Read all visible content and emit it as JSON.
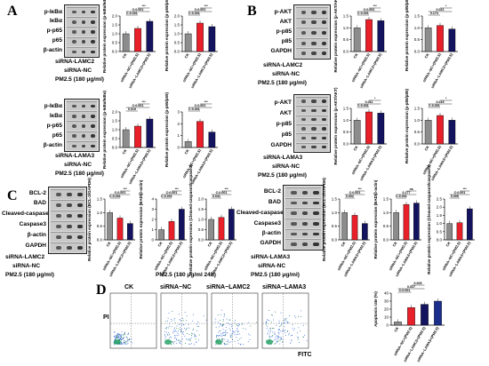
{
  "colors": {
    "ck": "#8c8c8c",
    "nc": "#e8202a",
    "kd": "#14135f"
  },
  "panels": {
    "A": {
      "letter": "A",
      "top": {
        "blot_labels": [
          "p-IκBα",
          "IκBα",
          "p-p65",
          "p65",
          "β-actin"
        ],
        "conditions": [
          "siRNA-LAMC2",
          "siRNA-NC",
          "PM2.5 (180 μg/ml)"
        ],
        "signs": [
          [
            "-",
            "-",
            "+"
          ],
          [
            "-",
            "+",
            "-"
          ],
          [
            "-",
            "+",
            "+"
          ]
        ],
        "charts": [
          {
            "ylabel": "Relative protein expression (p-IκBα/IκBα)",
            "values": [
              1.0,
              1.3,
              1.7
            ],
            "ylim": [
              0,
              2.0
            ],
            "ticks": [
              "0.0",
              "0.5",
              "1.0",
              "1.5",
              "2.0"
            ],
            "sig": [
              "C:0.001",
              "C:0.001",
              "***"
            ]
          },
          {
            "ylabel": "Relative protein expression (p-p65/p65)",
            "values": [
              1.0,
              1.6,
              1.4
            ],
            "ylim": [
              0,
              2.0
            ],
            "ticks": [
              "0.0",
              "0.5",
              "1.0",
              "1.5",
              "2.0"
            ],
            "sig": [
              "C:0.001",
              "C:0.001",
              "***"
            ]
          }
        ]
      },
      "bottom": {
        "blot_labels": [
          "p-IκBα",
          "IκBα",
          "p-p65",
          "p65",
          "β-actin"
        ],
        "conditions": [
          "siRNA-LAMA3",
          "siRNA-NC",
          "PM2.5 (180 μg/ml)"
        ],
        "signs": [
          [
            "-",
            "-",
            "+"
          ],
          [
            "-",
            "+",
            "-"
          ],
          [
            "-",
            "+",
            "+"
          ]
        ],
        "charts": [
          {
            "ylabel": "Relative protein expression (p-IκBα/IκBα)",
            "values": [
              1.0,
              1.2,
              1.6
            ],
            "ylim": [
              0,
              2.0
            ],
            "ticks": [
              "0.0",
              "0.5",
              "1.0",
              "1.5",
              "2.0"
            ],
            "sig": [
              "0.019",
              "C:0.001",
              "***"
            ]
          },
          {
            "ylabel": "Relative protein expression (p-p65/p65)",
            "values": [
              0.5,
              2.2,
              1.3
            ],
            "ylim": [
              0,
              3.0
            ],
            "ticks": [
              "0",
              "1",
              "2",
              "3"
            ],
            "sig": [
              "C:0.001",
              "C:0.001",
              "***"
            ]
          }
        ]
      }
    },
    "B": {
      "letter": "B",
      "top": {
        "blot_labels": [
          "p-AKT",
          "AKT",
          "p-p85",
          "p85",
          "GAPDH"
        ],
        "conditions": [
          "siRNA-LAMC2",
          "siRNA-NC",
          "PM2.5 (180 μg/ml)"
        ],
        "signs": [
          [
            "-",
            "-",
            "+"
          ],
          [
            "-",
            "+",
            "-"
          ],
          [
            "-",
            "+",
            "+"
          ]
        ],
        "charts": [
          {
            "ylabel": "Relative protein expression (p-AKT/AKT)",
            "values": [
              1.0,
              1.35,
              1.3
            ],
            "ylim": [
              0,
              1.5
            ],
            "ticks": [
              "0.0",
              "0.5",
              "1.0",
              "1.5"
            ],
            "sig": [
              "C:0.001",
              "C:0.001",
              "***"
            ]
          },
          {
            "ylabel": "Relative protein expression (p-p85/p85)",
            "values": [
              1.0,
              1.1,
              0.95
            ],
            "ylim": [
              0,
              1.5
            ],
            "ticks": [
              "0.0",
              "0.5",
              "1.0",
              "1.5"
            ],
            "sig": [
              "0.174",
              "0.021",
              "*"
            ]
          }
        ]
      },
      "bottom": {
        "blot_labels": [
          "p-AKT",
          "AKT",
          "p-p85",
          "p85",
          "GAPDH"
        ],
        "conditions": [
          "siRNA-LAMA3",
          "siRNA-NC",
          "PM2.5 (180 μg/ml)"
        ],
        "signs": [
          [
            "-",
            "-",
            "+"
          ],
          [
            "-",
            "+",
            "-"
          ],
          [
            "-",
            "+",
            "+"
          ]
        ],
        "charts": [
          {
            "ylabel": "Relative protein expression (p-AKT/AKT)",
            "values": [
              1.0,
              1.35,
              1.3
            ],
            "ylim": [
              0,
              1.5
            ],
            "ticks": [
              "0.0",
              "0.5",
              "1.0",
              "1.5"
            ],
            "sig": [
              "C:0.001",
              "0.011",
              "*"
            ]
          },
          {
            "ylabel": "Relative protein expression (p-p85/p85)",
            "values": [
              1.0,
              1.2,
              1.0
            ],
            "ylim": [
              0,
              1.5
            ],
            "ticks": [
              "0.0",
              "0.5",
              "1.0",
              "1.5"
            ],
            "sig": [
              "C:0.001",
              "0.019",
              "*"
            ]
          }
        ]
      }
    },
    "C": {
      "letter": "C",
      "left": {
        "blot_labels": [
          "BCL-2",
          "BAD",
          "Cleaved-caspase3",
          "Caspase3",
          "β-actin",
          "GAPDH"
        ],
        "conditions": [
          "siRNA-LAMC2",
          "siRNA-NC",
          "PM2.5 (180 μg/ml)"
        ],
        "signs": [
          [
            "-",
            "-",
            "+"
          ],
          [
            "-",
            "+",
            "-"
          ],
          [
            "-",
            "+",
            "+"
          ]
        ],
        "charts": [
          {
            "ylabel": "Relative protein expression (BCL-2/GAPDH)",
            "values": [
              1.0,
              0.8,
              0.6
            ],
            "ylim": [
              0,
              1.5
            ],
            "ticks": [
              "0.0",
              "0.5",
              "1.0",
              "1.5"
            ],
            "sig": [
              "C:0.001",
              "C:0.001",
              "***"
            ]
          },
          {
            "ylabel": "Relative protein expression (BAD/β-actin)",
            "values": [
              1.0,
              1.8,
              3.0
            ],
            "ylim": [
              0,
              4
            ],
            "ticks": [
              "0",
              "1",
              "2",
              "3",
              "4"
            ],
            "sig": [
              "C:0.001",
              "C:0.001",
              "***"
            ]
          },
          {
            "ylabel": "Relative protein expression (Cleaved-caspase3/caspase3)",
            "values": [
              1.0,
              1.1,
              1.5
            ],
            "ylim": [
              0,
              2.0
            ],
            "ticks": [
              "0.0",
              "0.5",
              "1.0",
              "1.5",
              "2.0"
            ],
            "sig": [
              "0.041",
              "C:0.001",
              "***"
            ]
          }
        ]
      },
      "right": {
        "blot_labels": [
          "BCL-2",
          "BAD",
          "Cleaved-caspase3",
          "Caspase3",
          "β-actin",
          "GAPDH"
        ],
        "conditions": [
          "siRNA-LAMA3",
          "siRNA-NC",
          "PM2.5 (180 μg/ml)"
        ],
        "signs": [
          [
            "-",
            "-",
            "+"
          ],
          [
            "-",
            "+",
            "-"
          ],
          [
            "-",
            "+",
            "+"
          ]
        ],
        "charts": [
          {
            "ylabel": "Relative protein expression (BCL-2/GAPDH)",
            "values": [
              1.0,
              0.9,
              0.6
            ],
            "ylim": [
              0,
              1.5
            ],
            "ticks": [
              "0.0",
              "0.5",
              "1.0",
              "1.5"
            ],
            "sig": [
              "0.002",
              "C:0.001",
              "***"
            ]
          },
          {
            "ylabel": "Relative protein expression (BAD/β-actin)",
            "values": [
              1.0,
              1.3,
              1.35
            ],
            "ylim": [
              0,
              1.5
            ],
            "ticks": [
              "0.0",
              "0.5",
              "1.0",
              "1.5"
            ],
            "sig": [
              "C:0.001",
              "0.177",
              "ns"
            ]
          },
          {
            "ylabel": "Relative protein expression (Cleaved-caspase3/caspase3)",
            "values": [
              1.0,
              1.05,
              1.9
            ],
            "ylim": [
              0,
              2.5
            ],
            "ticks": [
              "0.0",
              "0.5",
              "1.0",
              "1.5",
              "2.0",
              "2.5"
            ],
            "sig": [
              "0.005",
              "C:0.001",
              "***"
            ]
          }
        ]
      },
      "time_note": "PM2.5 (180 μg/ml 24h)"
    },
    "D": {
      "letter": "D",
      "plots": [
        "CK",
        "siRNA−NC",
        "siRNA−LAMC2",
        "siRNA−LAMA3"
      ],
      "ylabel": "PI",
      "xlabel": "FITC",
      "chart": {
        "ylabel": "Apoptosis rate (%)",
        "values": [
          4,
          22,
          26,
          30
        ],
        "ylim": [
          0,
          40
        ],
        "ticks": [
          "0",
          "10",
          "20",
          "30",
          "40"
        ],
        "sig": [
          "C:0.001",
          "0.027",
          "0.005"
        ]
      }
    }
  },
  "x_categories": [
    "CK",
    "siRNA−NC+(PM2.5)",
    "siRNA−LAMC2+(PM2.5)"
  ],
  "x_categories_a3": [
    "CK",
    "siRNA−NC+(PM2.5)",
    "siRNA−LAMA3+(PM2.5)"
  ],
  "d_categories": [
    "CK",
    "siRNA−NC+(PM2.5)",
    "siRNA−LAMC2+(PM2.5)",
    "siRNA−LAMA3+(PM2.5)"
  ]
}
